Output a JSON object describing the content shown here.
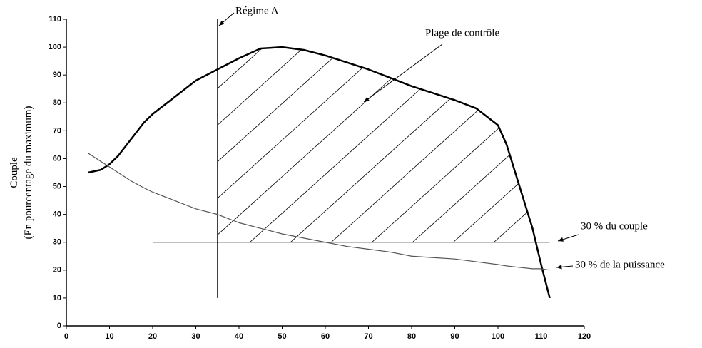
{
  "chart_data": {
    "type": "line",
    "x": [
      5,
      8,
      10,
      12,
      15,
      18,
      20,
      25,
      30,
      35,
      40,
      45,
      50,
      55,
      60,
      65,
      70,
      75,
      80,
      85,
      90,
      95,
      100,
      102,
      105,
      108,
      110,
      112
    ],
    "series": [
      {
        "color": "#000000",
        "line_width": 2.5,
        "values": [
          55,
          56,
          58,
          61,
          67,
          73,
          76,
          82,
          88,
          92,
          96,
          99.5,
          100,
          99,
          97,
          94.5,
          92,
          89,
          86,
          83.5,
          81,
          78,
          72,
          65,
          50,
          35,
          22,
          10
        ]
      },
      {
        "color": "#555555",
        "line_width": 1.2,
        "values": [
          62,
          59,
          57,
          55,
          52,
          49.5,
          48,
          45,
          42,
          40,
          37,
          35,
          33,
          31.5,
          30,
          28.5,
          27.5,
          26.5,
          25,
          24.5,
          24,
          23,
          22,
          21.5,
          21,
          20.5,
          20.5,
          20
        ]
      }
    ],
    "hline": {
      "y": 30,
      "x": [
        20,
        112
      ]
    },
    "vline": {
      "x": 35,
      "y": [
        10,
        110
      ]
    },
    "y_label": [
      "Couple",
      "(En pourcentage du maximum)"
    ],
    "annotations": [
      "Régime A",
      "Plage de contrôle",
      "30 % du couple",
      "30 % de la puissance"
    ],
    "xlim": [
      0,
      120
    ],
    "xticks": [
      0,
      10,
      20,
      30,
      40,
      50,
      60,
      70,
      80,
      90,
      100,
      110,
      120
    ],
    "ylim": [
      0,
      110
    ],
    "yticks": [
      0,
      10,
      20,
      30,
      40,
      50,
      60,
      70,
      80,
      90,
      100,
      110
    ]
  }
}
